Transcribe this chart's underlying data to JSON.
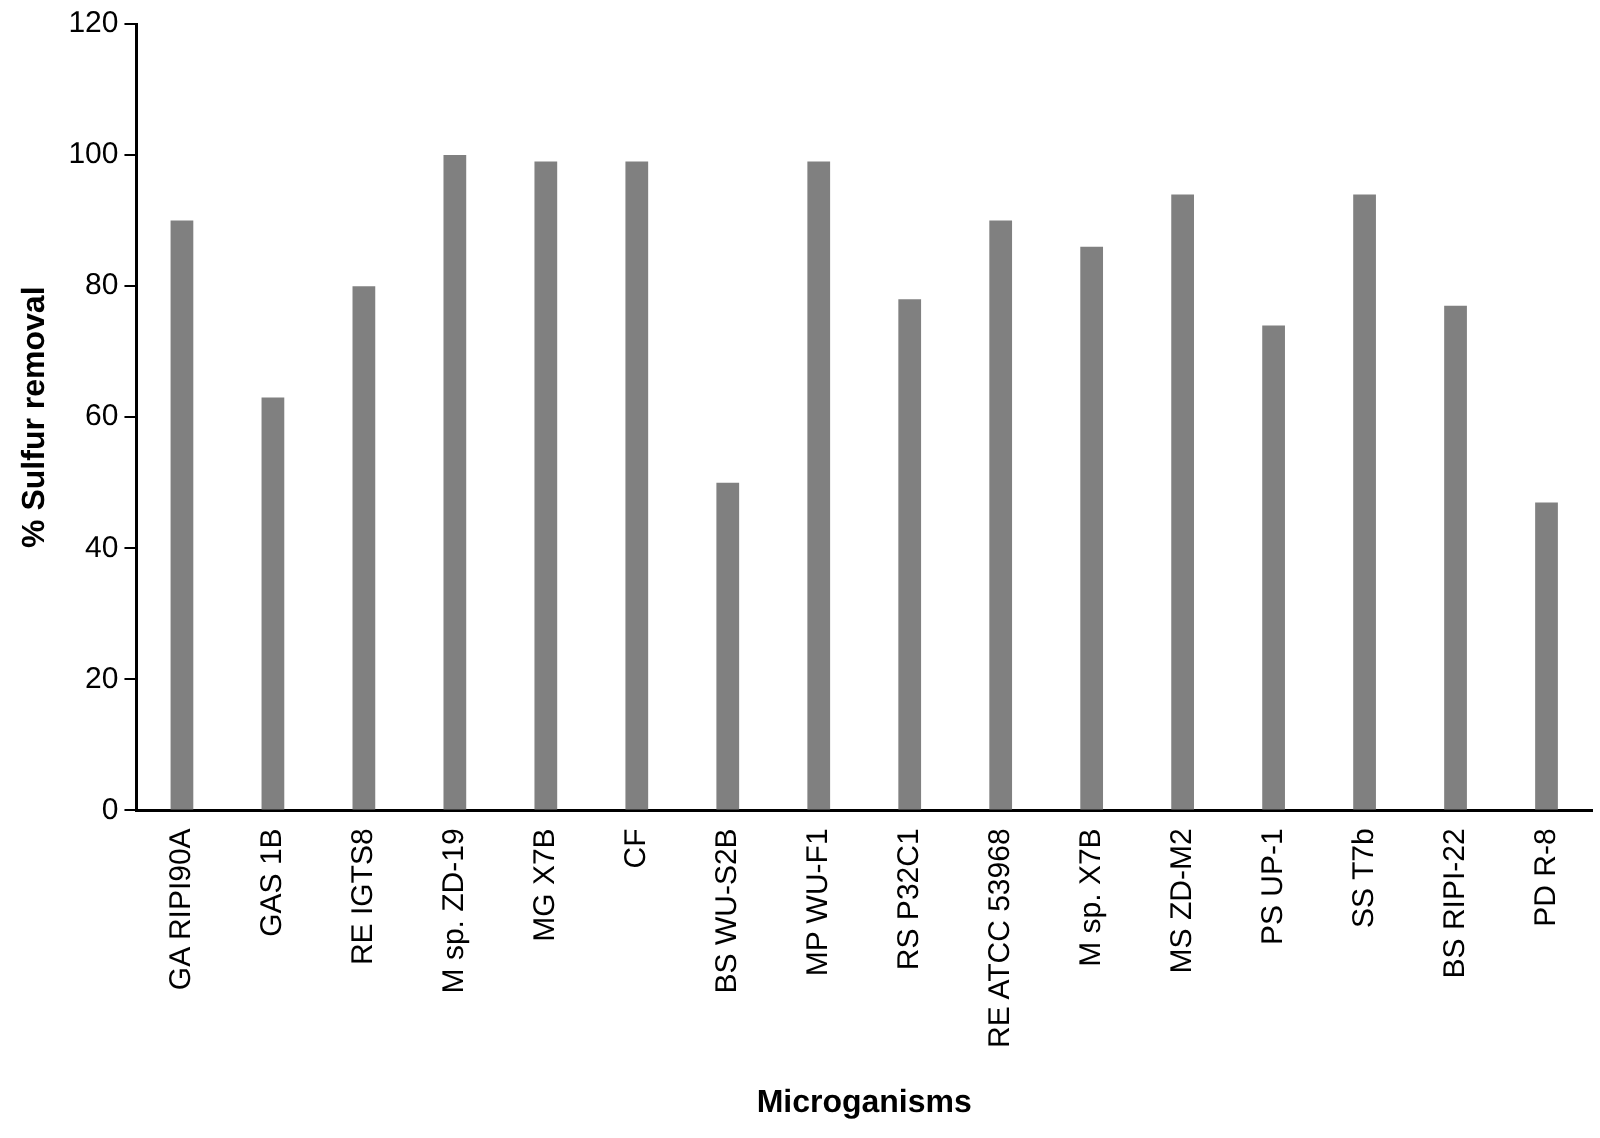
{
  "chart_data": {
    "type": "bar",
    "xlabel": "Microganisms",
    "ylabel": "% Sulfur removal",
    "categories": [
      "GA RIPI90A",
      "GAS 1B",
      "RE IGTS8",
      "M sp. ZD-19",
      "MG X7B",
      "CF",
      "BS WU-S2B",
      "MP WU-F1",
      "RS P32C1",
      "RE ATCC 53968",
      "M sp. X7B",
      "MS ZD-M2",
      "PS UP-1",
      "SS T7b",
      "BS RIPI-22",
      "PD R-8"
    ],
    "values": [
      90,
      63,
      80,
      100,
      99,
      99,
      50,
      99,
      78,
      90,
      86,
      94,
      74,
      94,
      77,
      47
    ],
    "color": "#808080",
    "ylim": [
      0,
      120
    ],
    "yticks": [
      0,
      20,
      40,
      60,
      80,
      100,
      120
    ],
    "grid": false,
    "legend": false
  }
}
